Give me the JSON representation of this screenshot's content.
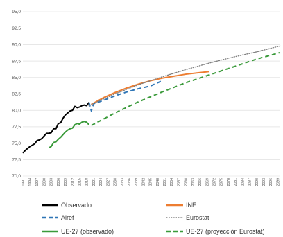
{
  "chart_data": {
    "type": "line",
    "title": "",
    "xlabel": "",
    "ylabel": "",
    "ylim": [
      70.0,
      95.0
    ],
    "yticks": [
      "70,0",
      "72,5",
      "75,0",
      "77,5",
      "80,0",
      "82,5",
      "85,0",
      "87,5",
      "90,0",
      "92,5",
      "95,0"
    ],
    "xlim": [
      1991,
      2100
    ],
    "xticks": [
      "1991",
      "1994",
      "1997",
      "2000",
      "2003",
      "2006",
      "2009",
      "2012",
      "2015",
      "2018",
      "2021",
      "2024",
      "2027",
      "2030",
      "2033",
      "2036",
      "2039",
      "2042",
      "2045",
      "2048",
      "2051",
      "2054",
      "2057",
      "2060",
      "2063",
      "2066",
      "2069",
      "2072",
      "2075",
      "2078",
      "2081",
      "2084",
      "2087",
      "2090",
      "2093",
      "2096",
      "2099"
    ],
    "grid": "horizontal",
    "legend_position": "bottom",
    "series": [
      {
        "name": "Observado",
        "color": "#000000",
        "style": "solid",
        "x": [
          1991,
          1992,
          1993,
          1994,
          1995,
          1996,
          1997,
          1998,
          1999,
          2000,
          2001,
          2002,
          2003,
          2004,
          2005,
          2006,
          2007,
          2008,
          2009,
          2010,
          2011,
          2012,
          2013,
          2014,
          2015,
          2016,
          2017,
          2018,
          2019
        ],
        "y": [
          73.5,
          73.9,
          74.2,
          74.5,
          74.7,
          74.9,
          75.4,
          75.5,
          75.7,
          76.1,
          76.5,
          76.5,
          76.6,
          77.2,
          77.2,
          78.0,
          78.1,
          78.8,
          79.3,
          79.6,
          79.9,
          80.0,
          80.6,
          80.4,
          80.5,
          80.7,
          80.8,
          80.7,
          81.2
        ]
      },
      {
        "name": "INE",
        "color": "#ed7d31",
        "style": "solid",
        "x": [
          2020,
          2025,
          2030,
          2035,
          2040,
          2045,
          2050,
          2055,
          2060,
          2065,
          2070
        ],
        "y": [
          80.9,
          81.9,
          82.7,
          83.4,
          84.0,
          84.5,
          84.9,
          85.2,
          85.5,
          85.7,
          85.9
        ]
      },
      {
        "name": "Airef",
        "color": "#2e75b6",
        "style": "dashed",
        "x": [
          2019,
          2020,
          2021,
          2025,
          2030,
          2035,
          2040,
          2045,
          2050
        ],
        "y": [
          81.2,
          79.9,
          81.0,
          81.5,
          82.2,
          82.8,
          83.3,
          83.7,
          84.5
        ]
      },
      {
        "name": "Eurostat",
        "color": "#808080",
        "style": "dotted",
        "x": [
          2019,
          2025,
          2030,
          2040,
          2050,
          2060,
          2070,
          2080,
          2090,
          2100
        ],
        "y": [
          80.7,
          81.7,
          82.5,
          83.9,
          85.1,
          86.2,
          87.2,
          88.1,
          88.9,
          89.8
        ]
      },
      {
        "name": "UE-27 (observado)",
        "color": "#3a9a3a",
        "style": "solid",
        "x": [
          2002,
          2003,
          2004,
          2005,
          2006,
          2007,
          2008,
          2009,
          2010,
          2011,
          2012,
          2013,
          2014,
          2015,
          2016,
          2017,
          2018,
          2019
        ],
        "y": [
          74.3,
          74.5,
          75.1,
          75.2,
          75.6,
          75.9,
          76.3,
          76.7,
          77.0,
          77.2,
          77.3,
          77.8,
          78.0,
          77.9,
          78.2,
          78.3,
          78.2,
          77.8
        ]
      },
      {
        "name": "UE-27 (proyección Eurostat)",
        "color": "#3a9a3a",
        "style": "dashed",
        "x": [
          2020,
          2030,
          2040,
          2050,
          2060,
          2070,
          2080,
          2090,
          2100
        ],
        "y": [
          77.7,
          79.6,
          81.3,
          82.8,
          84.2,
          85.4,
          86.6,
          87.8,
          88.8
        ]
      }
    ]
  }
}
